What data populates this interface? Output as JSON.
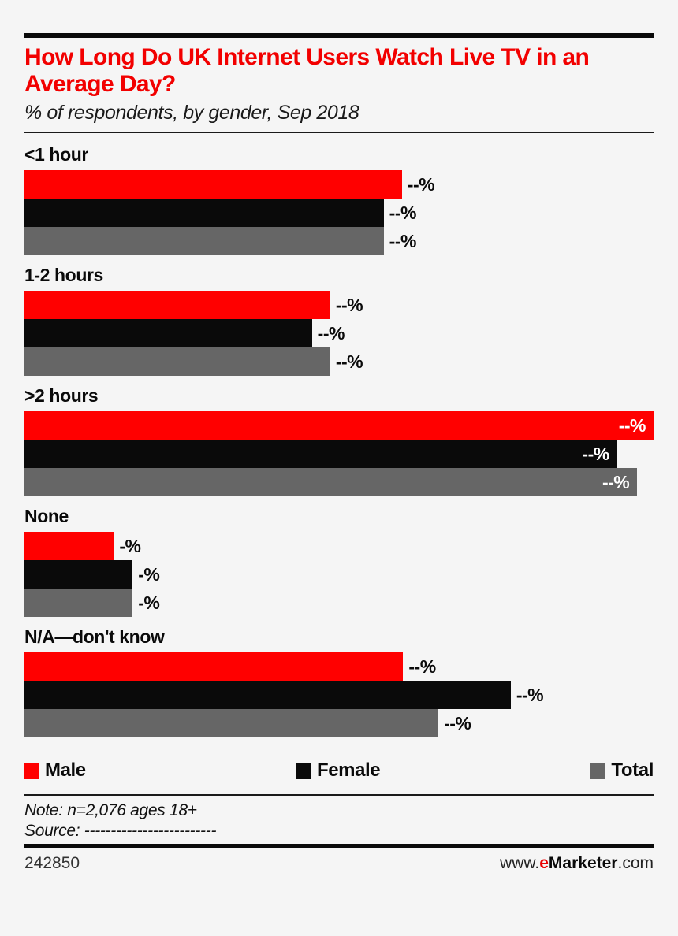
{
  "colors": {
    "male": "#ff0000",
    "female": "#0a0a0a",
    "total": "#666666",
    "title": "#f20000",
    "brand_red": "#e90000",
    "background": "#f5f5f5"
  },
  "header": {
    "title": "How Long Do UK Internet Users Watch Live TV in an Average Day?",
    "subtitle": "% of respondents, by gender, Sep 2018"
  },
  "chart_data": {
    "type": "bar",
    "orientation": "horizontal",
    "title": "How Long Do UK Internet Users Watch Live TV in an Average Day?",
    "subtitle": "% of respondents, by gender, Sep 2018",
    "categories": [
      "<1 hour",
      "1-2 hours",
      ">2 hours",
      "None",
      "N/A—don't know"
    ],
    "series_names": [
      "Male",
      "Female",
      "Total"
    ],
    "values_note": "numeric values redacted in source image; labels shown as dashes, bar lengths estimated as % of plot width",
    "sections": [
      {
        "category": "<1 hour",
        "bars": [
          {
            "series": "Male",
            "color_key": "male",
            "value": null,
            "label": "--%",
            "length_pct": 60.0,
            "label_inside": false
          },
          {
            "series": "Female",
            "color_key": "female",
            "value": null,
            "label": "--%",
            "length_pct": 57.1,
            "label_inside": false
          },
          {
            "series": "Total",
            "color_key": "total",
            "value": null,
            "label": "--%",
            "length_pct": 57.1,
            "label_inside": false
          }
        ]
      },
      {
        "category": "1-2 hours",
        "bars": [
          {
            "series": "Male",
            "color_key": "male",
            "value": null,
            "label": "--%",
            "length_pct": 48.6,
            "label_inside": false
          },
          {
            "series": "Female",
            "color_key": "female",
            "value": null,
            "label": "--%",
            "length_pct": 45.7,
            "label_inside": false
          },
          {
            "series": "Total",
            "color_key": "total",
            "value": null,
            "label": "--%",
            "length_pct": 48.6,
            "label_inside": false
          }
        ]
      },
      {
        "category": ">2 hours",
        "bars": [
          {
            "series": "Male",
            "color_key": "male",
            "value": null,
            "label": "--%",
            "length_pct": 100,
            "label_inside": true
          },
          {
            "series": "Female",
            "color_key": "female",
            "value": null,
            "label": "--%",
            "length_pct": 94.2,
            "label_inside": true
          },
          {
            "series": "Total",
            "color_key": "total",
            "value": null,
            "label": "--%",
            "length_pct": 97.4,
            "label_inside": true
          }
        ]
      },
      {
        "category": "None",
        "bars": [
          {
            "series": "Male",
            "color_key": "male",
            "value": null,
            "label": "-%",
            "length_pct": 14.2,
            "label_inside": false
          },
          {
            "series": "Female",
            "color_key": "female",
            "value": null,
            "label": "-%",
            "length_pct": 17.2,
            "label_inside": false
          },
          {
            "series": "Total",
            "color_key": "total",
            "value": null,
            "label": "-%",
            "length_pct": 17.2,
            "label_inside": false
          }
        ]
      },
      {
        "category": "N/A—don't know",
        "bars": [
          {
            "series": "Male",
            "color_key": "male",
            "value": null,
            "label": "--%",
            "length_pct": 60.2,
            "label_inside": false
          },
          {
            "series": "Female",
            "color_key": "female",
            "value": null,
            "label": "--%",
            "length_pct": 77.3,
            "label_inside": false
          },
          {
            "series": "Total",
            "color_key": "total",
            "value": null,
            "label": "--%",
            "length_pct": 65.8,
            "label_inside": false
          }
        ]
      }
    ],
    "legend_position": "bottom",
    "grid": false
  },
  "legend": {
    "items": [
      {
        "label": "Male",
        "color_key": "male"
      },
      {
        "label": "Female",
        "color_key": "female"
      },
      {
        "label": "Total",
        "color_key": "total"
      }
    ]
  },
  "footer": {
    "note": "Note: n=2,076 ages 18+",
    "source": "Source: -------------------------",
    "chart_id": "242850",
    "website": {
      "prefix": "www.",
      "brand_e": "e",
      "brand_rest": "Marketer",
      "suffix": ".com"
    }
  }
}
